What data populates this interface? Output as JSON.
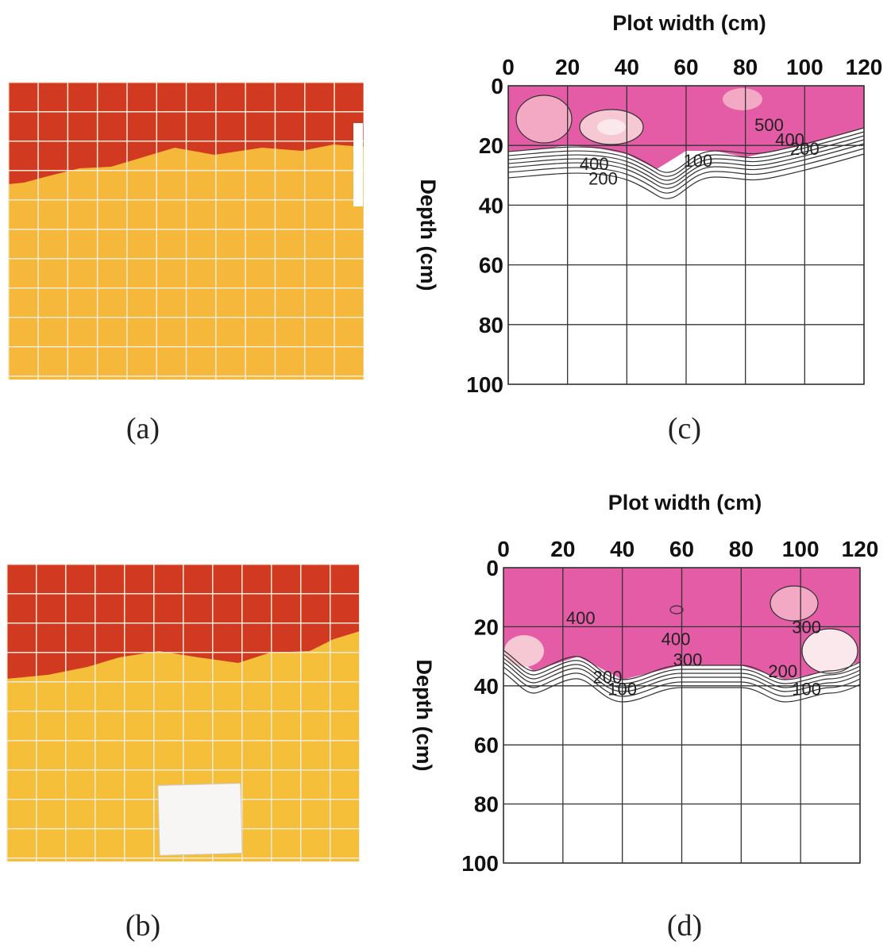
{
  "panels": {
    "a": "(a)",
    "b": "(b)",
    "c": "(c)",
    "d": "(d)"
  },
  "chart_data": [
    {
      "type": "contour",
      "xlabel": "Plot width (cm)",
      "ylabel": "Depth (cm)",
      "xlim": [
        0,
        120
      ],
      "ylim": [
        0,
        100
      ],
      "y_inverted": true,
      "xticks": [
        0,
        20,
        40,
        60,
        80,
        100,
        120
      ],
      "yticks": [
        0,
        20,
        40,
        60,
        80,
        100
      ],
      "grid": true,
      "contour_labels": [
        {
          "value": 500,
          "x": 88,
          "y": 13
        },
        {
          "value": 400,
          "x": 95,
          "y": 18
        },
        {
          "value": 200,
          "x": 100,
          "y": 21
        },
        {
          "value": 100,
          "x": 64,
          "y": 25
        },
        {
          "value": 400,
          "x": 29,
          "y": 26
        },
        {
          "value": 200,
          "x": 32,
          "y": 31
        }
      ]
    },
    {
      "type": "contour",
      "xlabel": "Plot width (cm)",
      "ylabel": "Depth (cm)",
      "xlim": [
        0,
        120
      ],
      "ylim": [
        0,
        100
      ],
      "y_inverted": true,
      "xticks": [
        0,
        20,
        40,
        60,
        80,
        100,
        120
      ],
      "yticks": [
        0,
        20,
        40,
        60,
        80,
        100
      ],
      "grid": true,
      "contour_labels": [
        {
          "value": 400,
          "x": 26,
          "y": 17
        },
        {
          "value": 400,
          "x": 58,
          "y": 24
        },
        {
          "value": 300,
          "x": 62,
          "y": 31
        },
        {
          "value": 300,
          "x": 102,
          "y": 20
        },
        {
          "value": 200,
          "x": 35,
          "y": 37
        },
        {
          "value": 100,
          "x": 40,
          "y": 41
        },
        {
          "value": 200,
          "x": 94,
          "y": 35
        },
        {
          "value": 100,
          "x": 102,
          "y": 41
        }
      ]
    }
  ]
}
